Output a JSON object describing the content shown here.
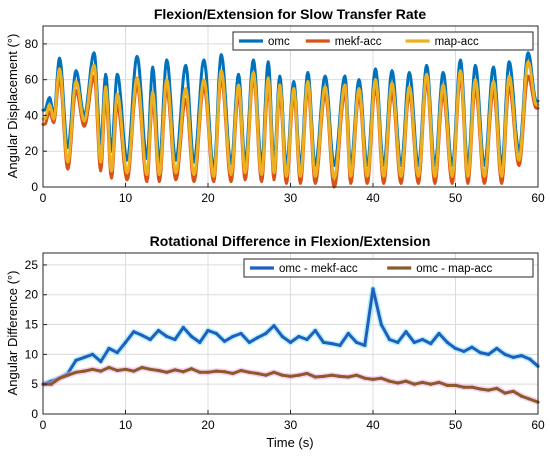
{
  "chart_data": [
    {
      "type": "line",
      "title": "Flexion/Extension for Slow Transfer Rate",
      "xlabel": "",
      "ylabel": "Angular Displacement (°)",
      "xlim": [
        0,
        60
      ],
      "ylim": [
        0,
        90
      ],
      "xticks": [
        0,
        10,
        20,
        30,
        40,
        50,
        60
      ],
      "yticks": [
        0,
        20,
        40,
        60,
        80
      ],
      "grid": true,
      "legend": "top-right, horizontal",
      "peaks": {
        "t": [
          0.8,
          2.0,
          4.0,
          6.2,
          7.6,
          9.0,
          11.4,
          13.3,
          15.0,
          17.3,
          19.5,
          21.6,
          23.7,
          25.5,
          27.3,
          28.7,
          30.4,
          32.1,
          34.2,
          36.6,
          38.3,
          40.3,
          42.3,
          44.4,
          46.5,
          48.5,
          50.6,
          52.4,
          54.6,
          56.5,
          58.8,
          59.8
        ],
        "omc": [
          50,
          72,
          65,
          75,
          63,
          63,
          73,
          67,
          71,
          68,
          71,
          74,
          63,
          71,
          70,
          62,
          59,
          64,
          62,
          62,
          60,
          66,
          65,
          64,
          68,
          64,
          71,
          68,
          67,
          70,
          75,
          48
        ],
        "mekf_acc": [
          42,
          61,
          54,
          62,
          50,
          46,
          57,
          48,
          55,
          49,
          56,
          61,
          52,
          61,
          56,
          52,
          51,
          55,
          52,
          53,
          51,
          56,
          53,
          52,
          59,
          52,
          61,
          55,
          54,
          56,
          62,
          44
        ],
        "map_acc": [
          46,
          66,
          59,
          68,
          56,
          52,
          61,
          53,
          60,
          55,
          60,
          65,
          57,
          64,
          61,
          57,
          55,
          59,
          56,
          57,
          55,
          60,
          58,
          56,
          63,
          57,
          65,
          60,
          59,
          62,
          70,
          46
        ]
      },
      "troughs": {
        "t": [
          0.2,
          1.3,
          3.0,
          5.0,
          7.0,
          8.3,
          10.2,
          12.6,
          14.1,
          16.1,
          18.3,
          20.7,
          22.8,
          24.5,
          26.5,
          28.0,
          29.5,
          31.2,
          33.0,
          35.3,
          37.3,
          39.3,
          41.3,
          43.4,
          45.5,
          47.5,
          49.6,
          51.5,
          53.5,
          55.6,
          57.7
        ],
        "omc": [
          43,
          40,
          22,
          40,
          24,
          20,
          15,
          16,
          14,
          15,
          14,
          10,
          13,
          14,
          13,
          14,
          12,
          12,
          12,
          12,
          12,
          12,
          12,
          12,
          12,
          12,
          12,
          12,
          12,
          12,
          20
        ],
        "mekf_acc": [
          35,
          36,
          10,
          34,
          9,
          5,
          4,
          3,
          3,
          4,
          3,
          3,
          3,
          4,
          3,
          4,
          2,
          2,
          2,
          0,
          2,
          2,
          2,
          2,
          2,
          2,
          2,
          2,
          2,
          2,
          12
        ],
        "map_acc": [
          38,
          38,
          14,
          37,
          14,
          9,
          8,
          7,
          7,
          8,
          7,
          6,
          7,
          8,
          7,
          8,
          6,
          6,
          6,
          5,
          6,
          6,
          6,
          6,
          6,
          6,
          6,
          6,
          6,
          6,
          15
        ]
      },
      "series": [
        {
          "name": "omc",
          "color": "#0072BD"
        },
        {
          "name": "mekf-acc",
          "color": "#D95319"
        },
        {
          "name": "map-acc",
          "color": "#EDB120"
        }
      ]
    },
    {
      "type": "line",
      "title": "Rotational Difference in Flexion/Extension",
      "xlabel": "Time (s)",
      "ylabel": "Angular Difference (°)",
      "xlim": [
        0,
        60
      ],
      "ylim": [
        0,
        27
      ],
      "xticks": [
        0,
        10,
        20,
        30,
        40,
        50,
        60
      ],
      "yticks": [
        0,
        5,
        10,
        15,
        20,
        25
      ],
      "grid": true,
      "legend": "top-right, horizontal",
      "x": [
        0,
        1,
        2,
        3,
        4,
        5,
        6,
        7,
        8,
        9,
        10,
        11,
        12,
        13,
        14,
        15,
        16,
        17,
        18,
        19,
        20,
        21,
        22,
        23,
        24,
        25,
        26,
        27,
        28,
        29,
        30,
        31,
        32,
        33,
        34,
        35,
        36,
        37,
        38,
        39,
        40,
        41,
        42,
        43,
        44,
        45,
        46,
        47,
        48,
        49,
        50,
        51,
        52,
        53,
        54,
        55,
        56,
        57,
        58,
        59,
        60
      ],
      "series": [
        {
          "name": "omc - mekf-acc",
          "color": "#1F5FBF",
          "glow": "#7FE3F0",
          "values": [
            5,
            5.5,
            6,
            6.8,
            9,
            9.5,
            10,
            8.8,
            11,
            10.3,
            12,
            13.8,
            13.2,
            12.5,
            14,
            13,
            12.5,
            14.5,
            13,
            12,
            14,
            13.5,
            12.2,
            13,
            13.5,
            12,
            12.8,
            13.5,
            14.8,
            13,
            12,
            13,
            12.5,
            14,
            12,
            11.8,
            11.5,
            13.5,
            12,
            11.5,
            21,
            15,
            12.5,
            12,
            13.8,
            12,
            12.5,
            11.8,
            13.5,
            12,
            11,
            10.5,
            11.2,
            10.3,
            10,
            11,
            10,
            9.5,
            9.8,
            9.2,
            8
          ]
        },
        {
          "name": "omc - map-acc",
          "color": "#8B5A2B",
          "glow": "#F4A9E8",
          "values": [
            5,
            5,
            6,
            6.5,
            7,
            7.2,
            7.5,
            7.2,
            7.8,
            7.3,
            7.5,
            7.2,
            7.8,
            7.5,
            7.3,
            7,
            7.4,
            7.1,
            7.6,
            7,
            7,
            7.2,
            7.1,
            6.8,
            7.3,
            7,
            6.8,
            6.5,
            7,
            6.5,
            6.3,
            6.5,
            6.8,
            6.2,
            6.3,
            6.5,
            6.3,
            6.2,
            6.5,
            6,
            5.8,
            6,
            5.5,
            5.2,
            5.5,
            5,
            5.3,
            5,
            5.3,
            4.8,
            4.8,
            4.5,
            4.5,
            4.2,
            4,
            4.3,
            3.5,
            3.8,
            3,
            2.5,
            2
          ]
        }
      ]
    }
  ]
}
